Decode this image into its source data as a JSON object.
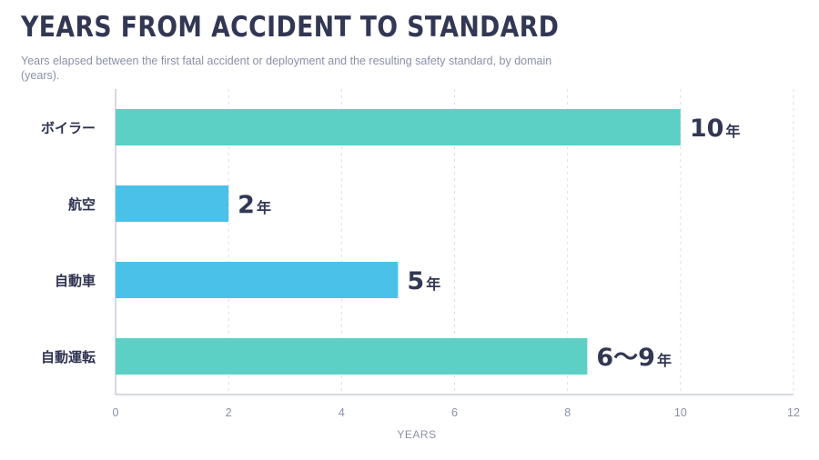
{
  "title": "YEARS FROM ACCIDENT TO STANDARD",
  "subtitle": "Years elapsed between the first fatal accident or deployment and the resulting safety standard, by domain (years).",
  "colors": {
    "teal": "#5cd0c4",
    "blue": "#4ac1e8",
    "grid": "#dcdfe7",
    "axis": "#c8ccd8"
  },
  "chart_data": {
    "type": "bar",
    "orientation": "horizontal",
    "categories": [
      "ボイラー",
      "航空",
      "自動車",
      "自動運転"
    ],
    "values": [
      10,
      2,
      5,
      8.35
    ],
    "value_labels": [
      {
        "number": "10",
        "unit": "年"
      },
      {
        "number": "2",
        "unit": "年"
      },
      {
        "number": "5",
        "unit": "年"
      },
      {
        "number": "6〜9",
        "unit": "年"
      }
    ],
    "bar_colors": [
      "#5cd0c4",
      "#4ac1e8",
      "#4ac1e8",
      "#5cd0c4"
    ],
    "xlabel": "YEARS",
    "ylabel": "",
    "xlim": [
      0,
      12
    ],
    "xticks": [
      0,
      2,
      4,
      6,
      8,
      10,
      12
    ],
    "grid": true
  }
}
